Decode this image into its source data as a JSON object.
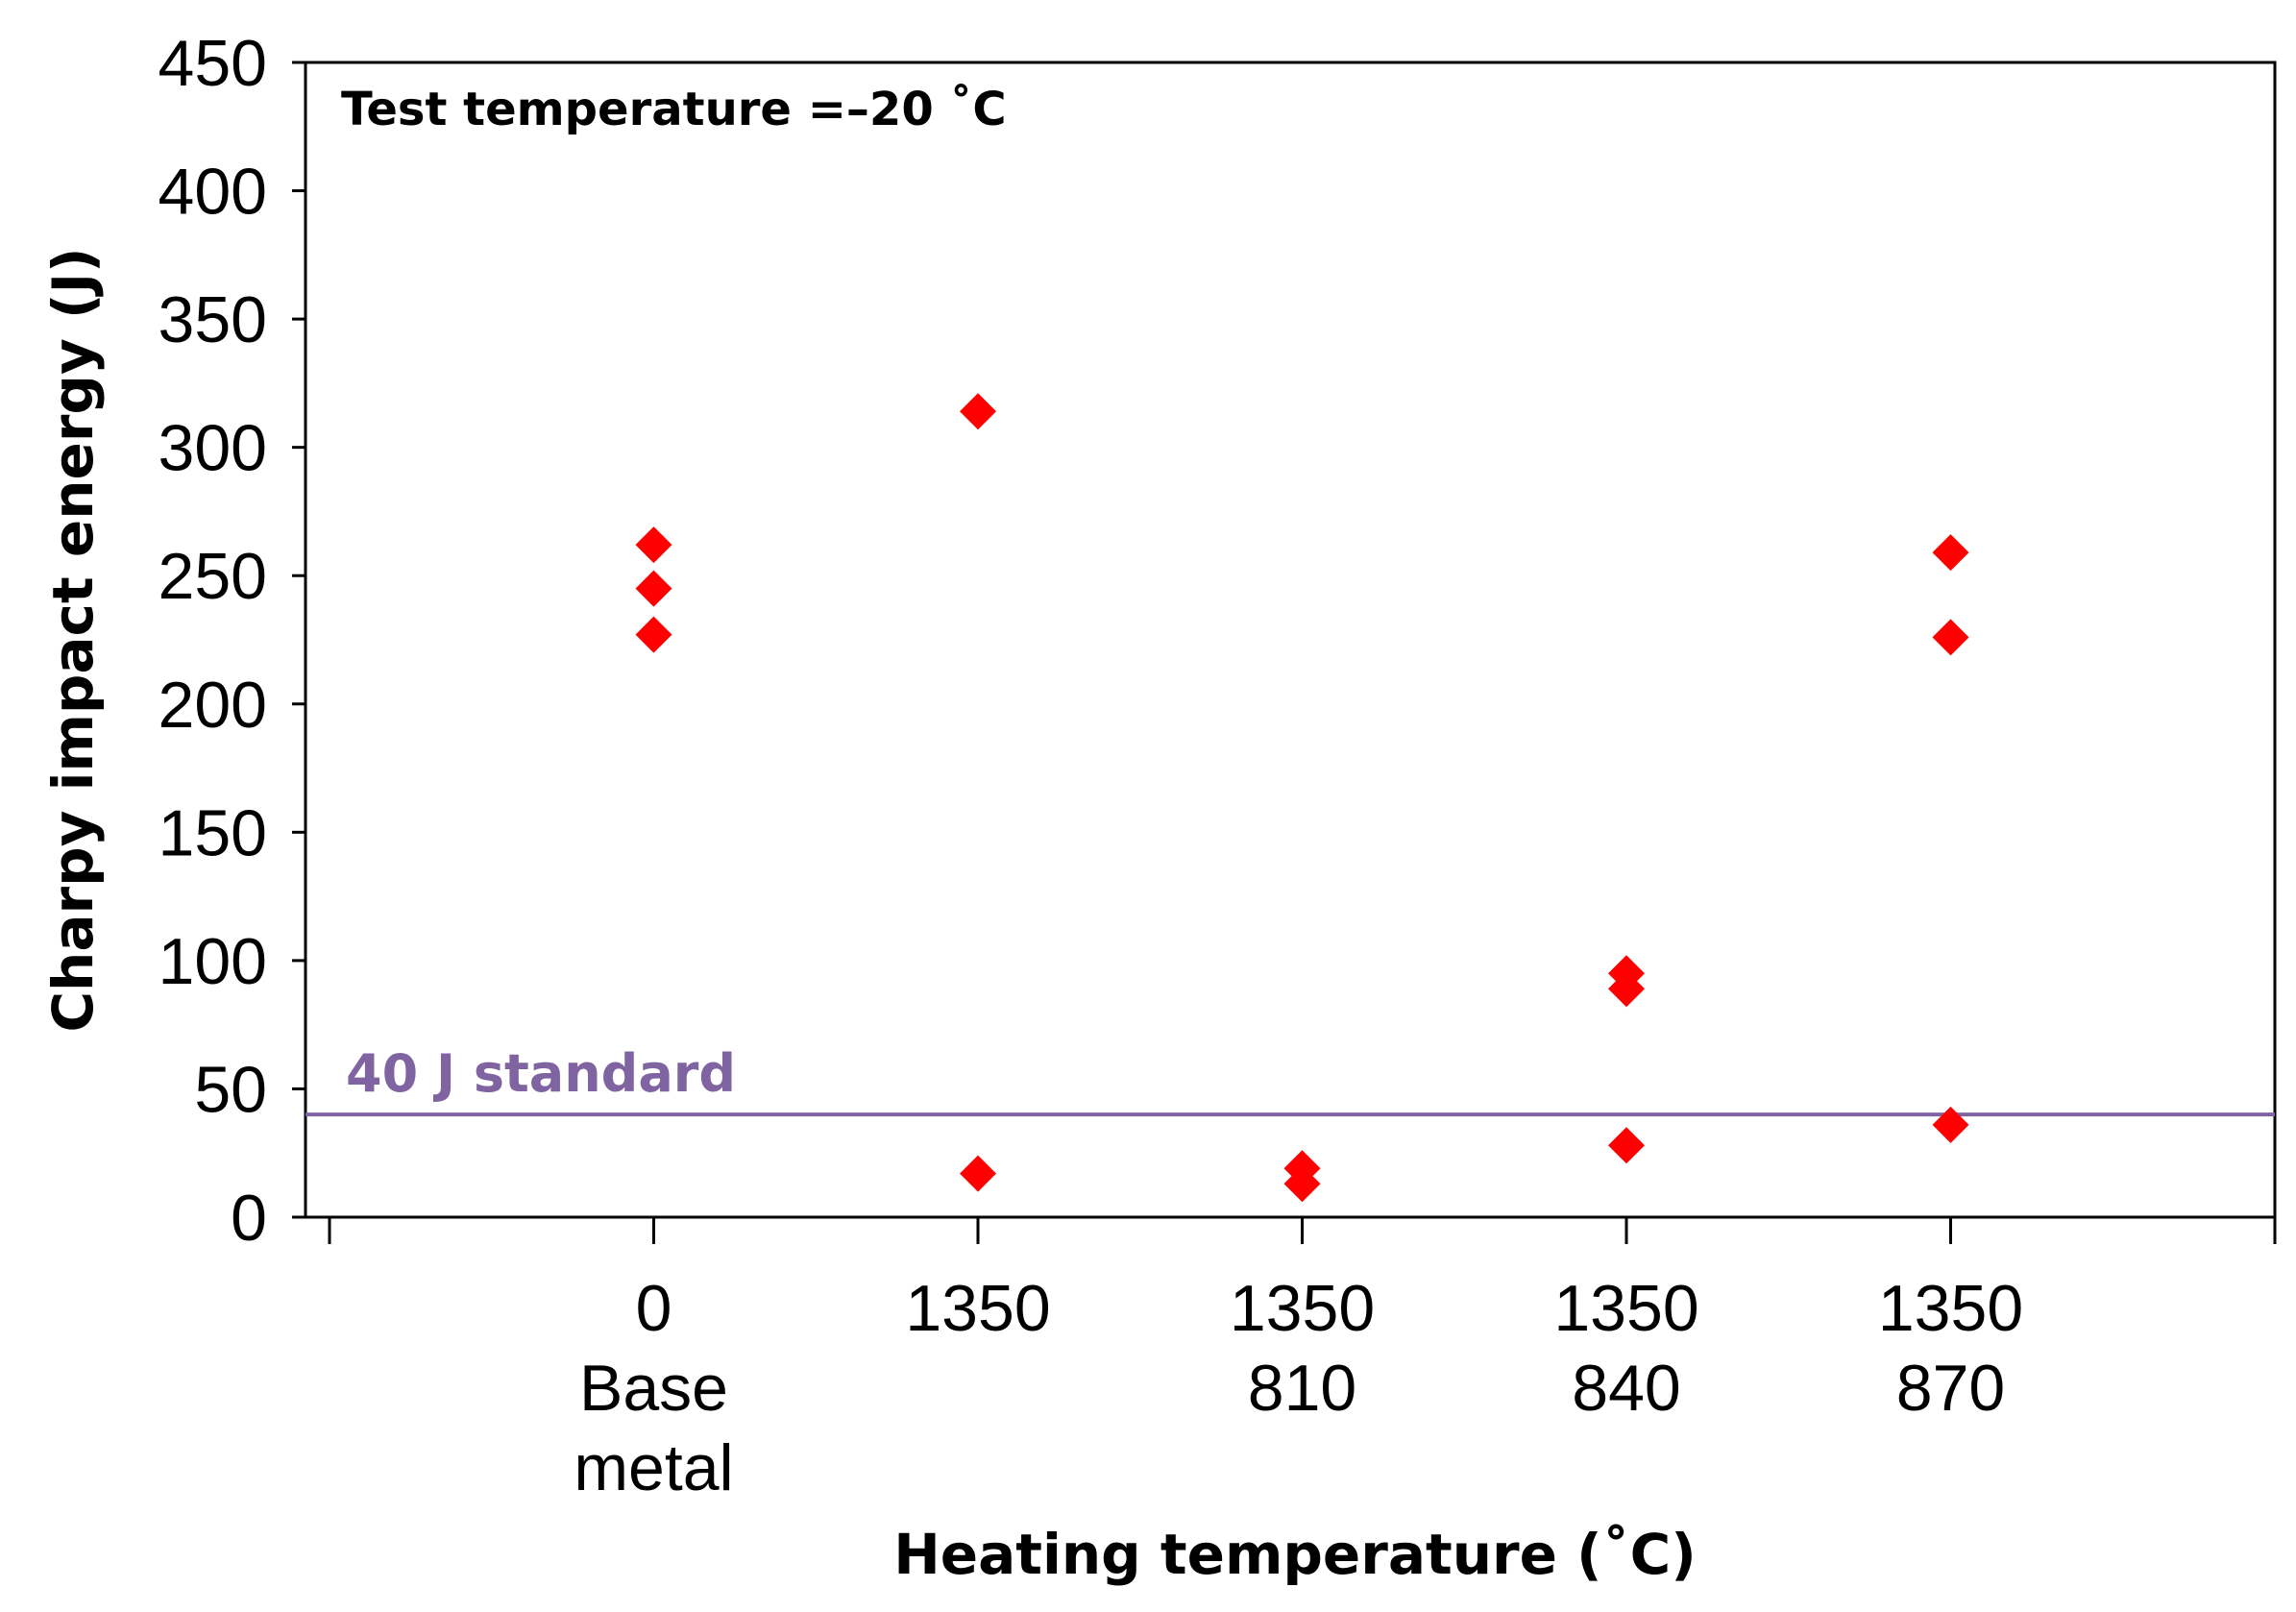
{
  "chart_data": {
    "type": "scatter",
    "xlabel": "Heating temperature (˚C)",
    "ylabel": "Charpy impact energy (J)",
    "ylim": [
      0,
      450
    ],
    "yticks": [
      "0",
      "50",
      "100",
      "150",
      "200",
      "250",
      "300",
      "350",
      "400",
      "450"
    ],
    "categories": [
      [
        "0",
        "Base",
        "metal"
      ],
      [
        "1350"
      ],
      [
        "1350",
        "810"
      ],
      [
        "1350",
        "840"
      ],
      [
        "1350",
        "870"
      ]
    ],
    "points": [
      {
        "category": 0,
        "value": 262
      },
      {
        "category": 0,
        "value": 245
      },
      {
        "category": 0,
        "value": 227
      },
      {
        "category": 1,
        "value": 314
      },
      {
        "category": 1,
        "value": 17
      },
      {
        "category": 2,
        "value": 19
      },
      {
        "category": 2,
        "value": 13
      },
      {
        "category": 3,
        "value": 95
      },
      {
        "category": 3,
        "value": 89
      },
      {
        "category": 3,
        "value": 28
      },
      {
        "category": 4,
        "value": 259
      },
      {
        "category": 4,
        "value": 226
      },
      {
        "category": 4,
        "value": 36
      }
    ],
    "marker": "diamond",
    "marker_color": "#ff0000",
    "reference_line": {
      "value": 40,
      "label": "40 J standard",
      "color": "#8064a2"
    },
    "annotation": "Test temperature =–20 ˚C",
    "grid": false
  }
}
